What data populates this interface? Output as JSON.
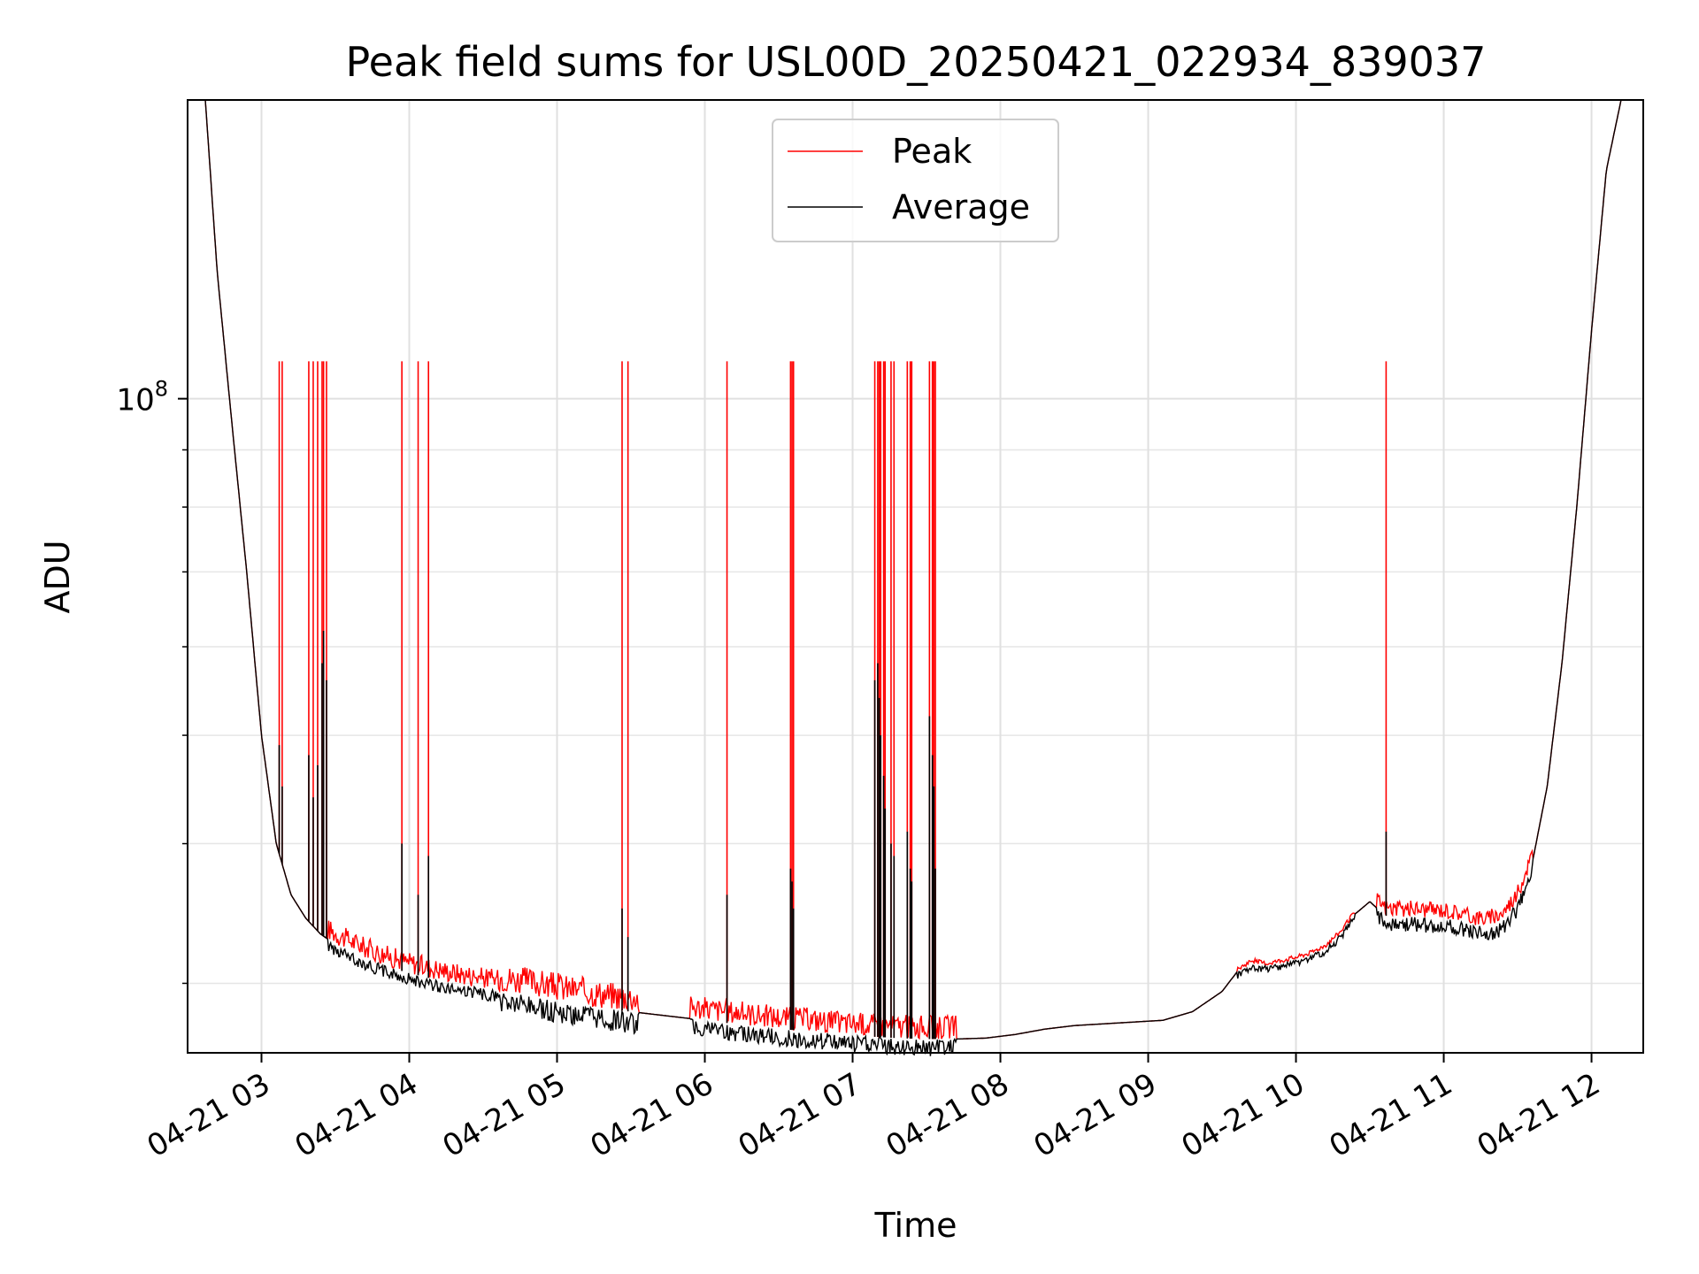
{
  "chart_data": {
    "type": "line",
    "title": "Peak field sums for USL00D_20250421_022934_839037",
    "xlabel": "Time",
    "ylabel": "ADU",
    "yscale": "log",
    "y_major_tick": {
      "value": 100000000,
      "base": "10",
      "exponent": "8"
    },
    "x_ticks": [
      "04-21 03",
      "04-21 04",
      "04-21 05",
      "04-21 06",
      "04-21 07",
      "04-21 08",
      "04-21 09",
      "04-21 10",
      "04-21 11",
      "04-21 12"
    ],
    "x_tick_values": [
      3,
      4,
      5,
      6,
      7,
      8,
      9,
      10,
      11,
      12
    ],
    "xlim": [
      2.5,
      12.35
    ],
    "ylim": [
      26000000,
      185000000
    ],
    "grid": true,
    "legend_position": "top-center",
    "series": [
      {
        "name": "Peak",
        "color": "#ff0000"
      },
      {
        "name": "Average",
        "color": "#000000"
      }
    ],
    "baseline": {
      "x": [
        2.62,
        2.7,
        2.8,
        2.9,
        3.0,
        3.1,
        3.2,
        3.3,
        3.4,
        3.5,
        3.7,
        3.9,
        4.1,
        4.3,
        4.5,
        4.7,
        4.9,
        5.1,
        5.3,
        5.5,
        5.7,
        5.9,
        6.1,
        6.3,
        6.5,
        6.7,
        6.9,
        7.1,
        7.3,
        7.5,
        7.7,
        7.9,
        8.1,
        8.3,
        8.5,
        8.7,
        8.9,
        9.1,
        9.3,
        9.5,
        9.6,
        9.7,
        9.8,
        9.9,
        10.0,
        10.1,
        10.2,
        10.3,
        10.4,
        10.5,
        10.6,
        10.7,
        10.8,
        10.9,
        11.0,
        11.1,
        11.2,
        11.3,
        11.4,
        11.5,
        11.6,
        11.7,
        11.8,
        11.9,
        12.0,
        12.1,
        12.2
      ],
      "y": [
        185000000,
        130000000,
        95000000,
        70000000,
        50000000,
        40000000,
        36000000,
        34300000,
        33200000,
        32500000,
        31600000,
        30900000,
        30400000,
        30000000,
        29700000,
        29400000,
        29100000,
        28800000,
        28500000,
        28300000,
        28100000,
        27900000,
        27700000,
        27500000,
        27300000,
        27200000,
        27000000,
        26900000,
        26800000,
        26750000,
        26750000,
        26800000,
        27000000,
        27300000,
        27500000,
        27600000,
        27700000,
        27800000,
        28300000,
        29500000,
        30700000,
        31300000,
        31100000,
        31300000,
        31500000,
        31800000,
        32300000,
        33200000,
        34600000,
        35500000,
        34500000,
        34300000,
        34400000,
        34300000,
        34300000,
        34100000,
        33800000,
        33700000,
        34100000,
        35500000,
        38500000,
        45000000,
        58000000,
        80000000,
        115000000,
        160000000,
        185000000
      ]
    },
    "spikes": {
      "peak_top": 108000000,
      "x": [
        3.12,
        3.14,
        3.32,
        3.35,
        3.38,
        3.41,
        3.42,
        3.44,
        3.95,
        4.06,
        4.13,
        5.44,
        5.48,
        6.15,
        6.58,
        6.59,
        6.6,
        7.15,
        7.17,
        7.18,
        7.19,
        7.21,
        7.22,
        7.26,
        7.28,
        7.37,
        7.39,
        7.4,
        7.52,
        7.54,
        7.55,
        7.56,
        10.61
      ],
      "average_top": [
        49000000,
        45000000,
        48000000,
        44000000,
        47000000,
        58000000,
        62000000,
        56000000,
        40000000,
        36000000,
        39000000,
        35000000,
        33000000,
        36000000,
        38000000,
        37000000,
        35000000,
        56000000,
        58000000,
        54000000,
        50000000,
        46000000,
        43000000,
        40000000,
        39000000,
        41000000,
        38000000,
        37000000,
        52000000,
        48000000,
        45000000,
        38000000,
        41000000
      ]
    }
  }
}
